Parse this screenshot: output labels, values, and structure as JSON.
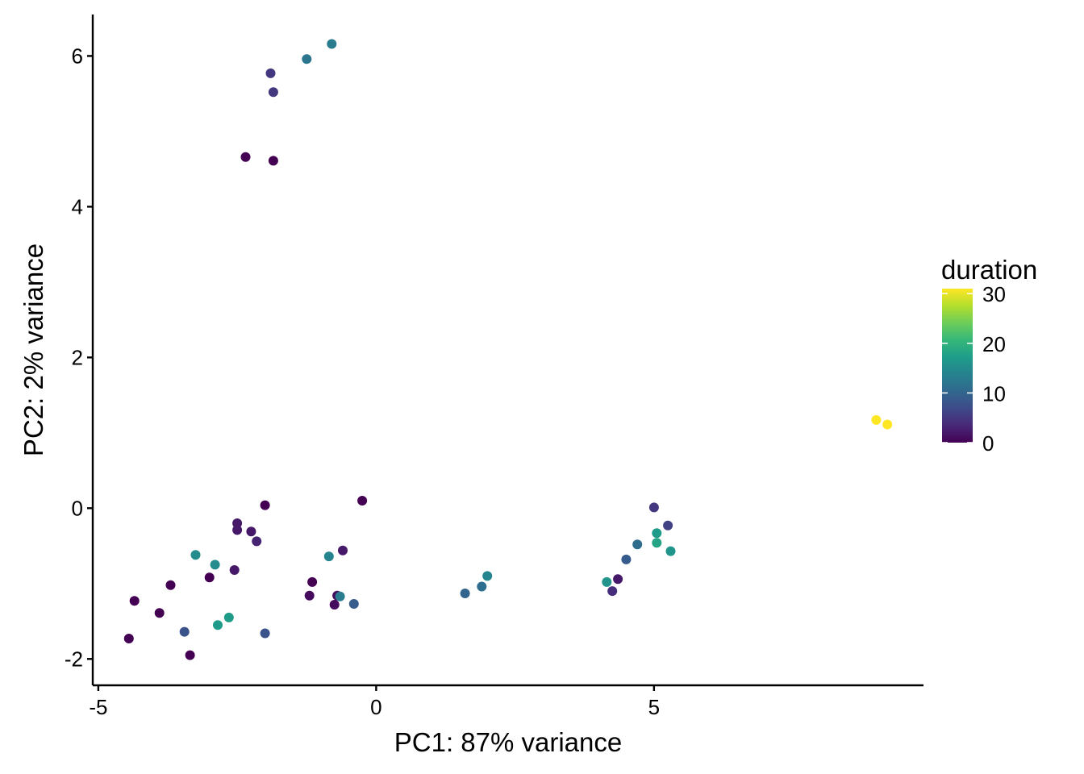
{
  "chart_data": {
    "type": "scatter",
    "xlabel": "PC1: 87% variance",
    "ylabel": "PC2: 2% variance",
    "xlim": [
      -5.1,
      9.85
    ],
    "ylim": [
      -2.35,
      6.55
    ],
    "x_ticks": [
      -5,
      0,
      5
    ],
    "x_tick_labels": [
      "-5",
      "0",
      "5"
    ],
    "y_ticks": [
      -2,
      0,
      2,
      4,
      6
    ],
    "y_tick_labels": [
      "-2",
      "0",
      "2",
      "4",
      "6"
    ],
    "grid": false,
    "legend": {
      "title": "duration",
      "placement": "right",
      "type": "colorbar",
      "colormap": "viridis",
      "min": 0,
      "max": 31,
      "ticks": [
        0,
        10,
        20,
        30
      ],
      "tick_labels": [
        "0",
        "10",
        "20",
        "30"
      ]
    },
    "colors": {
      "viridis_stops": [
        "#440154",
        "#482878",
        "#3E4A89",
        "#31688E",
        "#26828E",
        "#1F9E89",
        "#35B779",
        "#6DCD59",
        "#B4DE2C",
        "#FDE725"
      ]
    },
    "points": [
      {
        "x": -1.9,
        "y": 5.77,
        "duration": 5
      },
      {
        "x": -1.85,
        "y": 5.52,
        "duration": 5
      },
      {
        "x": -1.25,
        "y": 5.96,
        "duration": 12
      },
      {
        "x": -0.8,
        "y": 6.16,
        "duration": 13
      },
      {
        "x": -2.35,
        "y": 4.66,
        "duration": 0
      },
      {
        "x": -1.85,
        "y": 4.61,
        "duration": 0
      },
      {
        "x": 9.0,
        "y": 1.17,
        "duration": 31
      },
      {
        "x": 9.2,
        "y": 1.11,
        "duration": 31
      },
      {
        "x": -0.25,
        "y": 0.1,
        "duration": 0
      },
      {
        "x": -2.0,
        "y": 0.04,
        "duration": 0
      },
      {
        "x": -2.5,
        "y": -0.2,
        "duration": 2
      },
      {
        "x": -2.5,
        "y": -0.29,
        "duration": 2
      },
      {
        "x": -2.25,
        "y": -0.31,
        "duration": 2
      },
      {
        "x": -2.15,
        "y": -0.44,
        "duration": 3
      },
      {
        "x": -0.6,
        "y": -0.56,
        "duration": 2
      },
      {
        "x": -3.25,
        "y": -0.62,
        "duration": 15
      },
      {
        "x": -0.85,
        "y": -0.64,
        "duration": 14
      },
      {
        "x": -2.9,
        "y": -0.75,
        "duration": 15
      },
      {
        "x": -2.55,
        "y": -0.82,
        "duration": 2
      },
      {
        "x": -3.0,
        "y": -0.92,
        "duration": 0
      },
      {
        "x": -3.7,
        "y": -1.02,
        "duration": 0
      },
      {
        "x": -1.15,
        "y": -0.98,
        "duration": 0
      },
      {
        "x": -1.2,
        "y": -1.16,
        "duration": 1
      },
      {
        "x": -0.7,
        "y": -1.16,
        "duration": 1
      },
      {
        "x": -0.65,
        "y": -1.17,
        "duration": 13
      },
      {
        "x": -0.75,
        "y": -1.28,
        "duration": 1
      },
      {
        "x": -0.4,
        "y": -1.27,
        "duration": 9
      },
      {
        "x": -4.35,
        "y": -1.23,
        "duration": 0
      },
      {
        "x": -3.9,
        "y": -1.39,
        "duration": 0
      },
      {
        "x": -2.65,
        "y": -1.45,
        "duration": 17
      },
      {
        "x": -2.85,
        "y": -1.55,
        "duration": 17
      },
      {
        "x": -3.45,
        "y": -1.64,
        "duration": 8
      },
      {
        "x": -2.0,
        "y": -1.66,
        "duration": 8
      },
      {
        "x": -4.45,
        "y": -1.73,
        "duration": 0
      },
      {
        "x": -3.35,
        "y": -1.95,
        "duration": 0
      },
      {
        "x": 1.6,
        "y": -1.13,
        "duration": 10
      },
      {
        "x": 1.9,
        "y": -1.04,
        "duration": 11
      },
      {
        "x": 2.0,
        "y": -0.9,
        "duration": 14
      },
      {
        "x": 5.0,
        "y": 0.01,
        "duration": 5
      },
      {
        "x": 5.25,
        "y": -0.23,
        "duration": 6
      },
      {
        "x": 5.05,
        "y": -0.33,
        "duration": 17
      },
      {
        "x": 5.05,
        "y": -0.46,
        "duration": 18
      },
      {
        "x": 5.3,
        "y": -0.57,
        "duration": 16
      },
      {
        "x": 4.7,
        "y": -0.48,
        "duration": 11
      },
      {
        "x": 4.5,
        "y": -0.68,
        "duration": 9
      },
      {
        "x": 4.35,
        "y": -0.94,
        "duration": 2
      },
      {
        "x": 4.15,
        "y": -0.98,
        "duration": 16
      },
      {
        "x": 4.25,
        "y": -1.1,
        "duration": 4
      }
    ]
  }
}
